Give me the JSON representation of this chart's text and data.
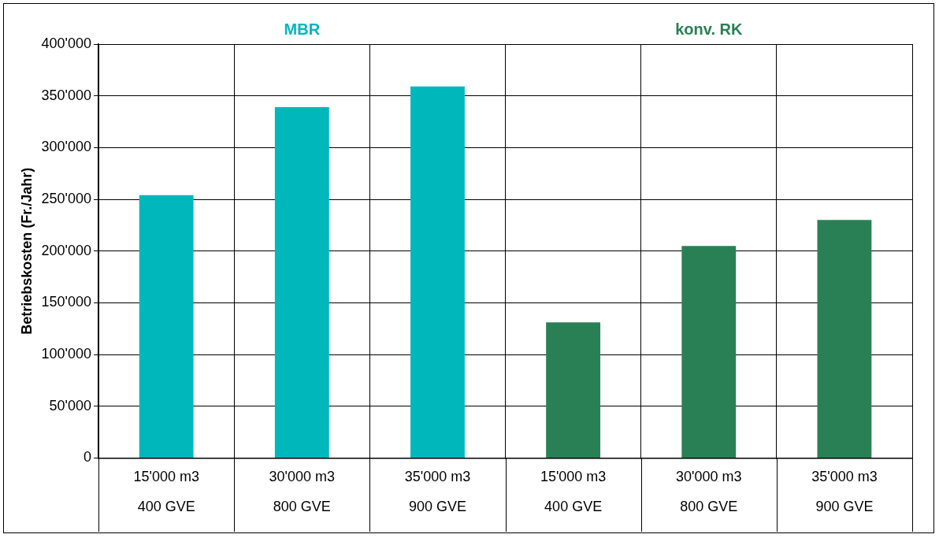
{
  "chart_data": {
    "type": "bar",
    "ylabel": "Betriebskosten (Fr./Jahr)",
    "categories": [
      "15'000 m3\n400 GVE",
      "30'000 m3\n800 GVE",
      "35'000 m3\n900 GVE",
      "15'000 m3\n400 GVE",
      "30'000 m3\n800 GVE",
      "35'000 m3\n900 GVE"
    ],
    "series": [
      {
        "name": "MBR",
        "color": "#00b8bc",
        "values": [
          254000,
          339000,
          359000,
          null,
          null,
          null
        ]
      },
      {
        "name": "konv. RK",
        "color": "#2a8055",
        "values": [
          null,
          null,
          null,
          131000,
          205000,
          230000
        ]
      }
    ],
    "stacked": true,
    "ylim": [
      0,
      400000
    ],
    "yticks": [
      {
        "value": 0,
        "label": "0"
      },
      {
        "value": 50000,
        "label": "50'000"
      },
      {
        "value": 100000,
        "label": "100'000"
      },
      {
        "value": 150000,
        "label": "150'000"
      },
      {
        "value": 200000,
        "label": "200'000"
      },
      {
        "value": 250000,
        "label": "250'000"
      },
      {
        "value": 300000,
        "label": "300'000"
      },
      {
        "value": 350000,
        "label": "350'000"
      },
      {
        "value": 400000,
        "label": "400'000"
      }
    ],
    "grid": true,
    "legend": false
  }
}
